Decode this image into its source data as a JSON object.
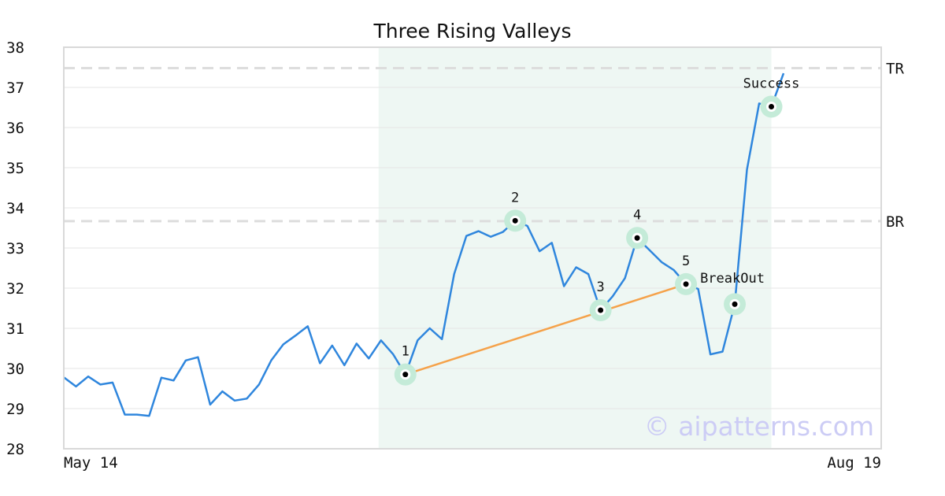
{
  "chart_data": {
    "type": "line",
    "title": "Three Rising Valleys",
    "xlabel": "",
    "ylabel": "",
    "ylim": [
      28,
      38
    ],
    "yticks": [
      28,
      29,
      30,
      31,
      32,
      33,
      34,
      35,
      36,
      37,
      38
    ],
    "x_start_label": "May 14",
    "x_end_label": "Aug 19",
    "grid": true,
    "colors": {
      "price": "#2f86dd",
      "trendline": "#f5a24a",
      "level": "#dddddd",
      "highlight": "#eef7f3",
      "marker_halo": "#c4ebd8",
      "watermark": "#ccccf5"
    },
    "series": [
      {
        "values": [
          29.78,
          29.55,
          29.8,
          29.6,
          29.65,
          28.85,
          28.85,
          28.82,
          29.77,
          29.7,
          30.2,
          30.28,
          29.1,
          29.43,
          29.2,
          29.25,
          29.6,
          30.2,
          30.6,
          30.82,
          31.05,
          30.13,
          30.57,
          30.08,
          30.62,
          30.25,
          30.7,
          30.35,
          29.85,
          30.7,
          31.0,
          30.73,
          32.35,
          33.3,
          33.42,
          33.28,
          33.4,
          33.68,
          33.55,
          32.92,
          33.13,
          32.05,
          32.52,
          32.35,
          31.45,
          31.8,
          32.25,
          33.25,
          32.95,
          32.65,
          32.45,
          32.1,
          31.98,
          30.35,
          30.42,
          31.6,
          34.95,
          36.6,
          36.52,
          37.35
        ]
      }
    ],
    "highlight_range": {
      "start_index": 26,
      "end_index": 58
    },
    "levels": [
      {
        "label": "TR",
        "value": 37.48
      },
      {
        "label": "BR",
        "value": 33.67
      }
    ],
    "points": [
      {
        "label": "1",
        "index": 28,
        "value": 29.85
      },
      {
        "label": "2",
        "index": 37,
        "value": 33.68
      },
      {
        "label": "3",
        "index": 44,
        "value": 31.45
      },
      {
        "label": "4",
        "index": 47,
        "value": 33.25
      },
      {
        "label": "5",
        "index": 51,
        "value": 32.1
      },
      {
        "label": "",
        "index": 55,
        "value": 31.6
      },
      {
        "label": "",
        "index": 58,
        "value": 36.52
      }
    ],
    "annotations": [
      {
        "text": "BreakOut",
        "index": 51,
        "value": 32.1
      },
      {
        "text": "Success",
        "index": 58,
        "value": 36.52
      }
    ],
    "trendline": {
      "from_point": 0,
      "to_point": 4
    },
    "watermark": "© aipatterns.com"
  }
}
